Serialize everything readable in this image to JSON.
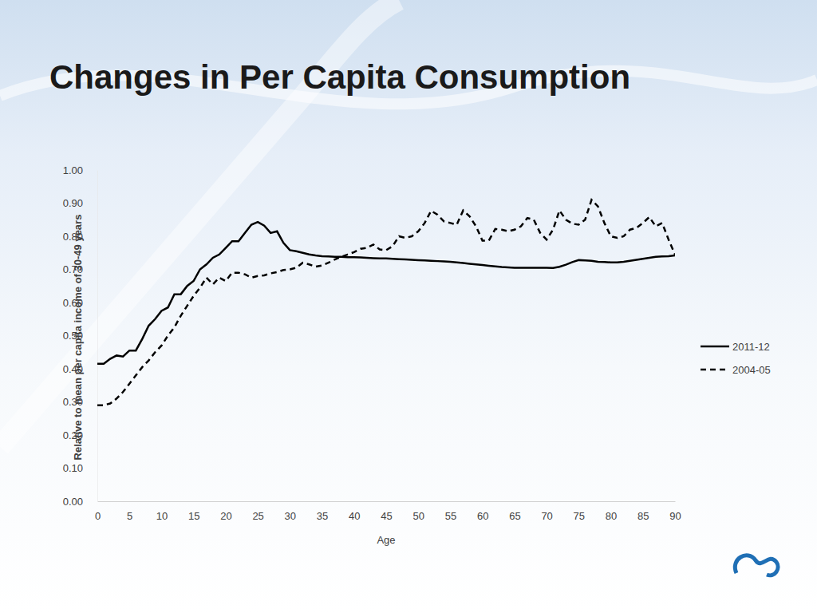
{
  "chart_data": {
    "type": "line",
    "title": "Changes in Per Capita Consumption",
    "x_label": "Age",
    "y_label": "Relative to mean per capita income of 30-49 years",
    "x": [
      0,
      1,
      2,
      3,
      4,
      5,
      6,
      7,
      8,
      9,
      10,
      11,
      12,
      13,
      14,
      15,
      16,
      17,
      18,
      19,
      20,
      21,
      22,
      23,
      24,
      25,
      26,
      27,
      28,
      29,
      30,
      31,
      32,
      33,
      34,
      35,
      36,
      37,
      38,
      39,
      40,
      41,
      42,
      43,
      44,
      45,
      46,
      47,
      48,
      49,
      50,
      51,
      52,
      53,
      54,
      55,
      56,
      57,
      58,
      59,
      60,
      61,
      62,
      63,
      64,
      65,
      66,
      67,
      68,
      69,
      70,
      71,
      72,
      73,
      74,
      75,
      76,
      77,
      78,
      79,
      80,
      81,
      82,
      83,
      84,
      85,
      86,
      87,
      88,
      89,
      90
    ],
    "series": [
      {
        "name": "2011-12",
        "color": "#000000",
        "line_style": "solid",
        "values": [
          0.415,
          0.415,
          0.43,
          0.44,
          0.437,
          0.455,
          0.455,
          0.49,
          0.53,
          0.55,
          0.575,
          0.585,
          0.625,
          0.625,
          0.65,
          0.665,
          0.7,
          0.715,
          0.735,
          0.745,
          0.765,
          0.785,
          0.785,
          0.81,
          0.835,
          0.843,
          0.832,
          0.81,
          0.815,
          0.78,
          0.758,
          0.755,
          0.75,
          0.745,
          0.742,
          0.74,
          0.739,
          0.738,
          0.738,
          0.737,
          0.737,
          0.736,
          0.735,
          0.734,
          0.733,
          0.733,
          0.732,
          0.731,
          0.73,
          0.729,
          0.728,
          0.727,
          0.726,
          0.725,
          0.724,
          0.723,
          0.721,
          0.719,
          0.717,
          0.715,
          0.713,
          0.711,
          0.709,
          0.707,
          0.706,
          0.705,
          0.705,
          0.705,
          0.705,
          0.705,
          0.705,
          0.704,
          0.708,
          0.714,
          0.722,
          0.728,
          0.727,
          0.726,
          0.723,
          0.722,
          0.721,
          0.721,
          0.723,
          0.726,
          0.729,
          0.732,
          0.735,
          0.738,
          0.739,
          0.74,
          0.742
        ]
      },
      {
        "name": "2004-05",
        "color": "#000000",
        "line_style": "dashed",
        "values": [
          0.29,
          0.29,
          0.295,
          0.31,
          0.33,
          0.355,
          0.38,
          0.405,
          0.425,
          0.45,
          0.47,
          0.5,
          0.525,
          0.56,
          0.59,
          0.62,
          0.645,
          0.675,
          0.655,
          0.675,
          0.665,
          0.69,
          0.69,
          0.685,
          0.675,
          0.68,
          0.682,
          0.688,
          0.692,
          0.698,
          0.7,
          0.705,
          0.72,
          0.715,
          0.708,
          0.712,
          0.72,
          0.73,
          0.738,
          0.745,
          0.752,
          0.762,
          0.765,
          0.775,
          0.76,
          0.758,
          0.77,
          0.8,
          0.795,
          0.8,
          0.815,
          0.84,
          0.877,
          0.865,
          0.845,
          0.84,
          0.835,
          0.878,
          0.86,
          0.83,
          0.787,
          0.787,
          0.822,
          0.82,
          0.815,
          0.82,
          0.83,
          0.855,
          0.85,
          0.81,
          0.79,
          0.82,
          0.878,
          0.85,
          0.838,
          0.835,
          0.85,
          0.91,
          0.89,
          0.84,
          0.8,
          0.795,
          0.8,
          0.82,
          0.825,
          0.84,
          0.858,
          0.83,
          0.84,
          0.79,
          0.745
        ]
      }
    ],
    "xlim": [
      0,
      90
    ],
    "xticks": [
      0,
      5,
      10,
      15,
      20,
      25,
      30,
      35,
      40,
      45,
      50,
      55,
      60,
      65,
      70,
      75,
      80,
      85,
      90
    ],
    "ylim": [
      0,
      1
    ],
    "yticks": [
      {
        "value": 0,
        "label": "0.00"
      },
      {
        "value": 0.1,
        "label": "0.10"
      },
      {
        "value": 0.2,
        "label": "0.20"
      },
      {
        "value": 0.3,
        "label": "0.30"
      },
      {
        "value": 0.4,
        "label": "0.40"
      },
      {
        "value": 0.5,
        "label": "0.50"
      },
      {
        "value": 0.6,
        "label": "0.60"
      },
      {
        "value": 0.7,
        "label": "0.70"
      },
      {
        "value": 0.8,
        "label": "0.80"
      },
      {
        "value": 0.9,
        "label": "0.90"
      },
      {
        "value": 1,
        "label": "1.00"
      }
    ],
    "grid": false,
    "legend": "right"
  }
}
